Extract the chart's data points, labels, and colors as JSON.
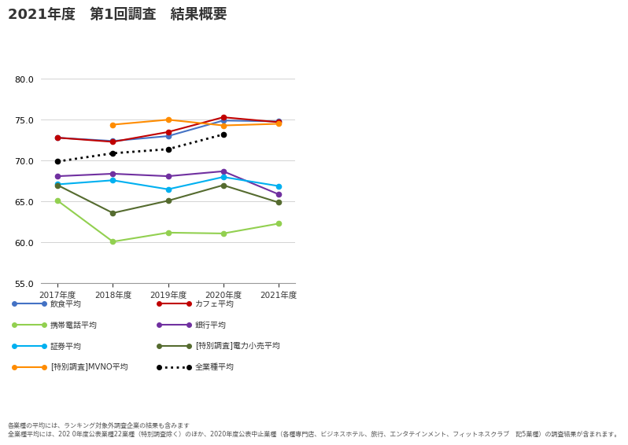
{
  "title": "2021年度　第1回調査　結果概要",
  "years": [
    "2017年度",
    "2018年度",
    "2019年度",
    "2020年度",
    "2021年度"
  ],
  "series": {
    "飲食平均": {
      "values": [
        72.8,
        72.4,
        73.0,
        74.9,
        74.8
      ],
      "color": "#4472C4",
      "linestyle": "-"
    },
    "カフェ平均": {
      "values": [
        72.8,
        72.3,
        73.5,
        75.3,
        74.7
      ],
      "color": "#C00000",
      "linestyle": "-"
    },
    "携帯電話平均": {
      "values": [
        65.1,
        60.1,
        61.2,
        61.1,
        62.3
      ],
      "color": "#92D050",
      "linestyle": "-"
    },
    "銀行平均": {
      "values": [
        68.1,
        68.4,
        68.1,
        68.7,
        65.9
      ],
      "color": "#7030A0",
      "linestyle": "-"
    },
    "証券平均": {
      "values": [
        67.1,
        67.6,
        66.5,
        68.0,
        66.9
      ],
      "color": "#00B0F0",
      "linestyle": "-"
    },
    "[特別調査]電力小売平均": {
      "values": [
        67.0,
        63.6,
        65.1,
        67.0,
        64.9
      ],
      "color": "#556B2F",
      "linestyle": "-"
    },
    "[特別調査]MVNO平均": {
      "values": [
        null,
        74.4,
        75.0,
        74.3,
        74.5
      ],
      "color": "#FF8C00",
      "linestyle": "-"
    },
    "全業種平均": {
      "values": [
        69.9,
        70.9,
        71.4,
        73.2,
        null
      ],
      "color": "#000000",
      "linestyle": ":"
    }
  },
  "legend_pairs": [
    [
      "飲食平均",
      "カフェ平均"
    ],
    [
      "携帯電話平均",
      "銀行平均"
    ],
    [
      "証券平均",
      "[特別調査]電力小売平均"
    ],
    [
      "[特別調査]MVNO平均",
      "全業種平均"
    ]
  ],
  "ylim": [
    55.0,
    82.0
  ],
  "yticks": [
    55.0,
    60.0,
    65.0,
    70.0,
    75.0,
    80.0
  ],
  "background_color": "#FFFFFF",
  "note_text": "各業種の平均には、ランキング対象外調査企業の結果も含みます\n全業種平均には、202 0年度公表業種22業種（特別調査除く）のほか、2020年度公表中止業種（各種専門店、ビジネスホテル、旅行、エンタテインメント、フィットネスクラブ　記5業種）の調査結果が含まれます。"
}
